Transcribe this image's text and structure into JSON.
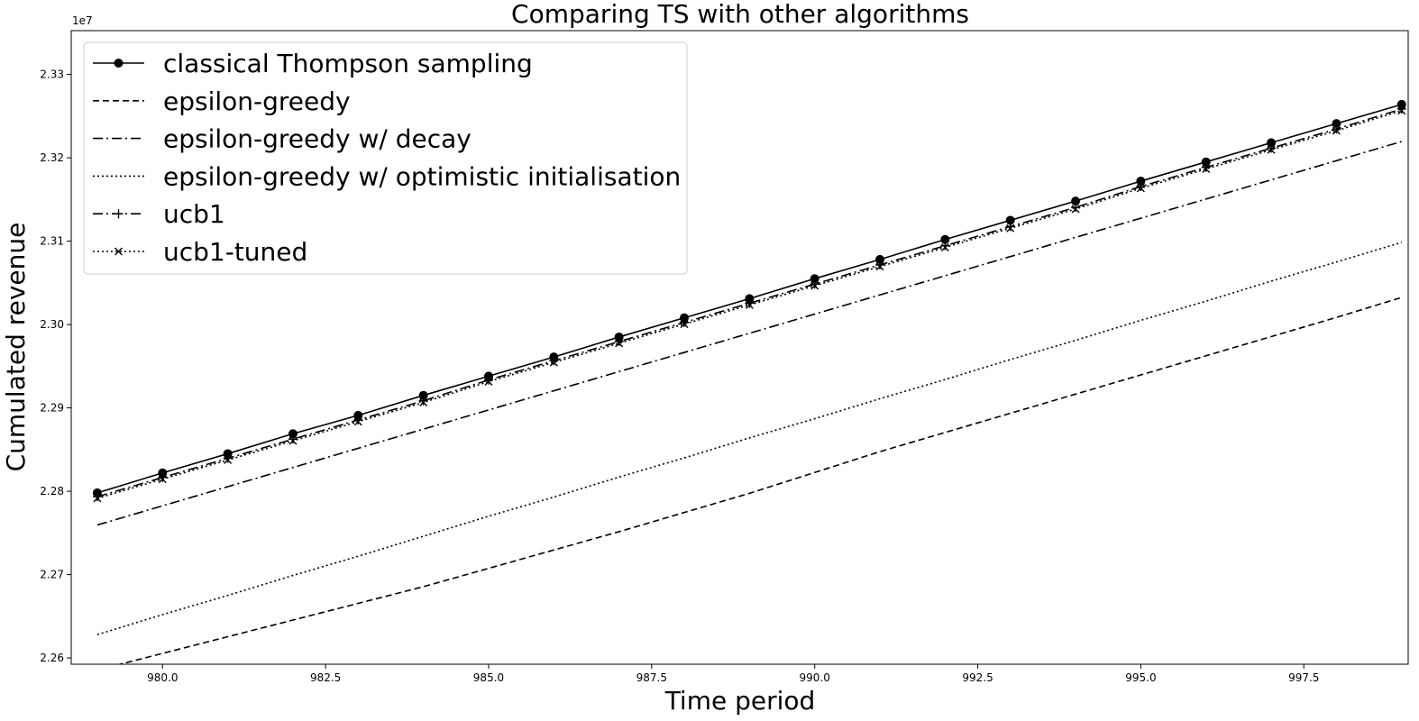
{
  "chart_data": {
    "type": "line",
    "title": "Comparing TS with other algorithms",
    "xlabel": "Time period",
    "ylabel": "Cumulated revenue",
    "y_offset_label": "1e7",
    "xlim": [
      978.6,
      999.1
    ],
    "ylim": [
      22.5925,
      23.3525
    ],
    "y_scale_note": "values in units of 1e6 (axis multiplier 1e7)",
    "x_ticks": [
      980.0,
      982.5,
      985.0,
      987.5,
      990.0,
      992.5,
      995.0,
      997.5
    ],
    "x_tick_labels": [
      "980.0",
      "982.5",
      "985.0",
      "987.5",
      "990.0",
      "992.5",
      "995.0",
      "997.5"
    ],
    "y_ticks": [
      22.6,
      22.7,
      22.8,
      22.9,
      23.0,
      23.1,
      23.2,
      23.3
    ],
    "y_tick_labels": [
      "2.26",
      "2.27",
      "2.28",
      "2.29",
      "2.30",
      "2.31",
      "2.32",
      "2.33"
    ],
    "grid": false,
    "legend_position": "upper-left",
    "x": [
      979,
      980,
      981,
      982,
      983,
      984,
      985,
      986,
      987,
      988,
      989,
      990,
      991,
      992,
      993,
      994,
      995,
      996,
      997,
      998,
      999
    ],
    "series": [
      {
        "name": "classical Thompson sampling",
        "style": "solid",
        "marker": "circle",
        "values": [
          22.798,
          22.822,
          22.845,
          22.869,
          22.891,
          22.915,
          22.938,
          22.961,
          22.985,
          23.008,
          23.031,
          23.055,
          23.078,
          23.102,
          23.125,
          23.148,
          23.172,
          23.195,
          23.218,
          23.241,
          23.264
        ]
      },
      {
        "name": "epsilon-greedy",
        "style": "dashed",
        "marker": "none",
        "values": [
          22.5855,
          22.6055,
          22.6255,
          22.6455,
          22.6655,
          22.6855,
          22.7075,
          22.7295,
          22.7515,
          22.7745,
          22.7975,
          22.8225,
          22.8475,
          22.8705,
          22.8935,
          22.9165,
          22.9395,
          22.9625,
          22.9855,
          23.0085,
          23.0325
        ]
      },
      {
        "name": "epsilon-greedy w/ decay",
        "style": "dashdot",
        "marker": "none",
        "values": [
          22.7595,
          22.7825,
          22.8055,
          22.8285,
          22.8515,
          22.8745,
          22.8975,
          22.9205,
          22.9435,
          22.9665,
          22.9895,
          23.0125,
          23.0355,
          23.0585,
          23.0815,
          23.1045,
          23.1275,
          23.1505,
          23.1735,
          23.1965,
          23.2195
        ]
      },
      {
        "name": "epsilon-greedy w/ optimistic initialisation",
        "style": "dotted",
        "marker": "none",
        "values": [
          22.628,
          22.652,
          22.675,
          22.699,
          22.722,
          22.746,
          22.77,
          22.793,
          22.817,
          22.84,
          22.864,
          22.887,
          22.911,
          22.934,
          22.958,
          22.981,
          23.005,
          23.028,
          23.052,
          23.075,
          23.0985
        ]
      },
      {
        "name": "ucb1",
        "style": "dashdot",
        "marker": "plus",
        "values": [
          22.7935,
          22.8165,
          22.8395,
          22.8625,
          22.8855,
          22.9085,
          22.9335,
          22.9565,
          22.9795,
          23.0025,
          23.0255,
          23.0485,
          23.0715,
          23.0945,
          23.1175,
          23.1405,
          23.1655,
          23.1885,
          23.2115,
          23.2345,
          23.2585
        ]
      },
      {
        "name": "ucb1-tuned",
        "style": "dotted",
        "marker": "x",
        "values": [
          22.7915,
          22.8145,
          22.8375,
          22.8605,
          22.8835,
          22.9065,
          22.9315,
          22.9545,
          22.9775,
          23.0005,
          23.0235,
          23.0465,
          23.0695,
          23.0925,
          23.1155,
          23.1385,
          23.1635,
          23.1865,
          23.2095,
          23.2325,
          23.2565
        ]
      }
    ]
  }
}
